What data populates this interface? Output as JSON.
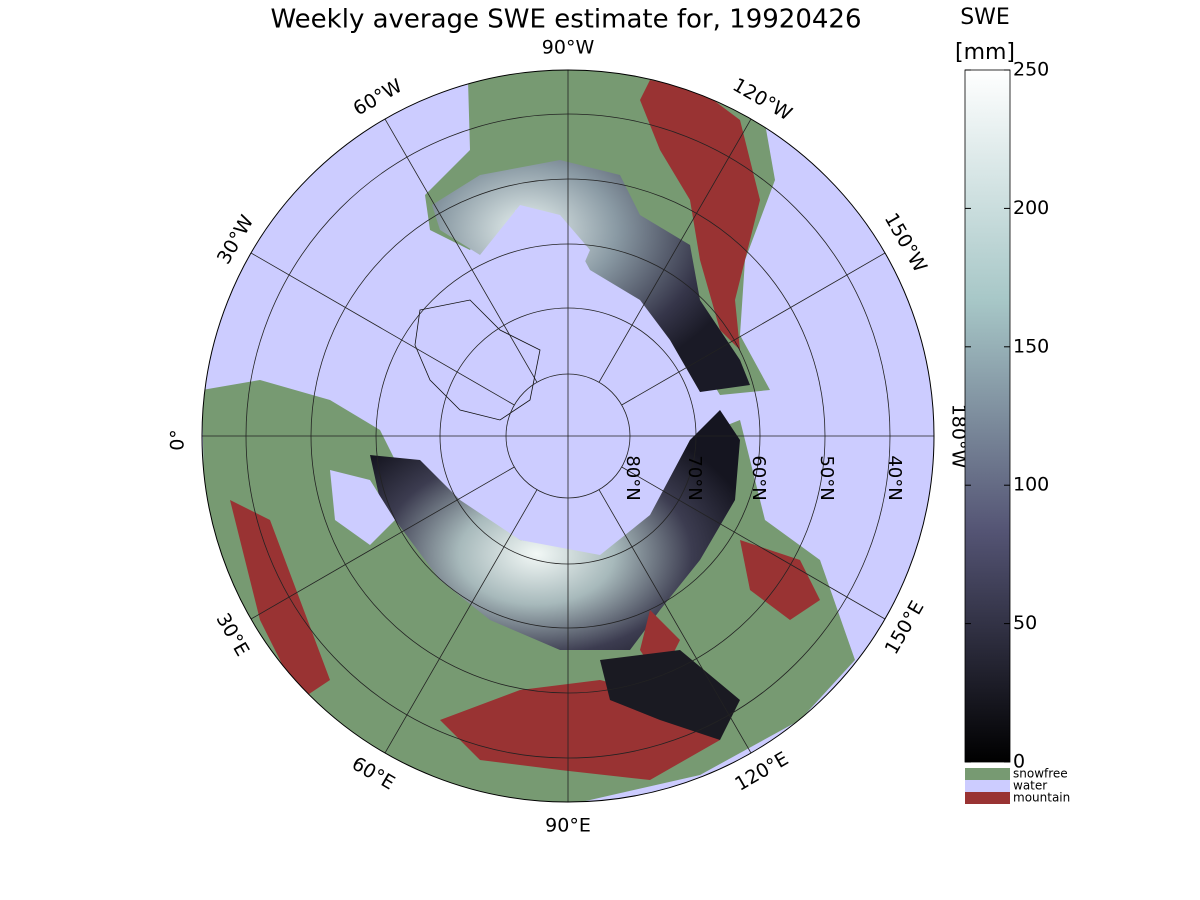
{
  "title": "Weekly average SWE estimate for, 19920426",
  "map": {
    "lon_labels": [
      "90°W",
      "120°W",
      "150°W",
      "180°W",
      "150°E",
      "120°E",
      "90°E",
      "60°E",
      "30°E",
      "0°",
      "30°W",
      "60°W"
    ],
    "lat_labels": [
      "80°N",
      "70°N",
      "60°N",
      "50°N",
      "40°N"
    ]
  },
  "colorbar": {
    "title": "SWE",
    "unit": "[mm]",
    "lim": [
      0,
      250
    ],
    "ticks": [
      0,
      50,
      100,
      150,
      200,
      250
    ],
    "colors": [
      "#000000",
      "#545474",
      "#a7c7c7",
      "#ffffff"
    ],
    "categories": [
      {
        "name": "snowfree",
        "color": "#779a72"
      },
      {
        "name": "water",
        "color": "#ccccff"
      },
      {
        "name": "mountain",
        "color": "#993333"
      }
    ]
  }
}
